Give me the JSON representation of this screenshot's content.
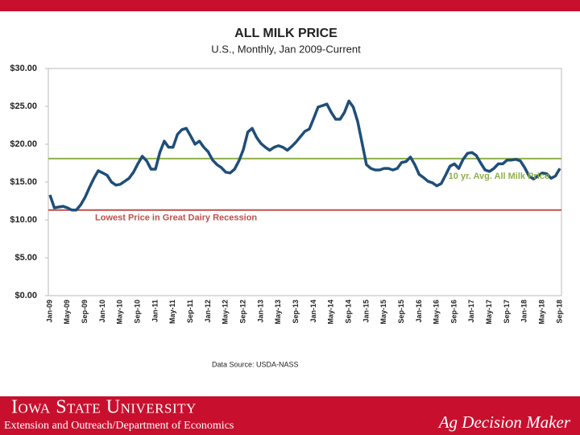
{
  "chart_data": {
    "type": "line",
    "title": "ALL MILK PRICE",
    "subtitle": "U.S., Monthly,  Jan 2009-Current",
    "categories": [
      "Jan-09",
      null,
      null,
      null,
      "May-09",
      null,
      null,
      null,
      "Sep-09",
      null,
      null,
      null,
      "Jan-10",
      null,
      null,
      null,
      "May-10",
      null,
      null,
      null,
      "Sep-10",
      null,
      null,
      null,
      "Jan-11",
      null,
      null,
      null,
      "May-11",
      null,
      null,
      null,
      "Sep-11",
      null,
      null,
      null,
      "Jan-12",
      null,
      null,
      null,
      "May-12",
      null,
      null,
      null,
      "Sep-12",
      null,
      null,
      null,
      "Jan-13",
      null,
      null,
      null,
      "May-13",
      null,
      null,
      null,
      "Sep-13",
      null,
      null,
      null,
      "Jan-14",
      null,
      null,
      null,
      "May-14",
      null,
      null,
      null,
      "Sep-14",
      null,
      null,
      null,
      "Jan-15",
      null,
      null,
      null,
      "May-15",
      null,
      null,
      null,
      "Sep-15",
      null,
      null,
      null,
      "Jan-16",
      null,
      null,
      null,
      "May-16",
      null,
      null,
      null,
      "Sep-16",
      null,
      null,
      null,
      "Jan-17",
      null,
      null,
      null,
      "May-17",
      null,
      null,
      null,
      "Sep-17",
      null,
      null,
      null,
      "Jan-18",
      null,
      null,
      null,
      "May-18",
      null,
      null,
      null,
      "Sep-18"
    ],
    "values": [
      13.3,
      11.6,
      11.7,
      11.8,
      11.6,
      11.3,
      11.3,
      12.0,
      13.0,
      14.3,
      15.5,
      16.5,
      16.2,
      15.9,
      15.0,
      14.6,
      14.7,
      15.1,
      15.5,
      16.3,
      17.4,
      18.4,
      17.8,
      16.7,
      16.7,
      18.9,
      20.4,
      19.6,
      19.6,
      21.3,
      21.9,
      22.1,
      21.1,
      20.0,
      20.4,
      19.6,
      19.0,
      17.9,
      17.3,
      16.9,
      16.3,
      16.2,
      16.7,
      17.8,
      19.3,
      21.6,
      22.1,
      20.9,
      20.1,
      19.6,
      19.2,
      19.6,
      19.8,
      19.6,
      19.2,
      19.7,
      20.3,
      21.0,
      21.7,
      22.0,
      23.4,
      24.9,
      25.1,
      25.3,
      24.2,
      23.3,
      23.3,
      24.2,
      25.7,
      24.9,
      23.0,
      20.2,
      17.3,
      16.8,
      16.6,
      16.6,
      16.8,
      16.8,
      16.6,
      16.8,
      17.6,
      17.7,
      18.3,
      17.3,
      16.0,
      15.6,
      15.1,
      14.9,
      14.5,
      14.8,
      15.9,
      17.1,
      17.4,
      16.8,
      18.0,
      18.8,
      18.9,
      18.5,
      17.5,
      16.6,
      16.4,
      16.8,
      17.4,
      17.4,
      17.9,
      17.9,
      18.0,
      17.8,
      16.9,
      15.8,
      15.4,
      15.8,
      16.2,
      16.1,
      15.5,
      15.8,
      16.8
    ],
    "color": "#1f4e79",
    "ylim": [
      0,
      30
    ],
    "yticks": [
      {
        "value": 0,
        "label": "$0.00"
      },
      {
        "value": 5,
        "label": "$5.00"
      },
      {
        "value": 10,
        "label": "$10.00"
      },
      {
        "value": 15,
        "label": "$15.00"
      },
      {
        "value": 20,
        "label": "$20.00"
      },
      {
        "value": 25,
        "label": "$25.00"
      },
      {
        "value": 30,
        "label": "$30.00"
      }
    ],
    "reference_lines": [
      {
        "value": 18.1,
        "label": "10 yr. Avg. All Milk Price",
        "color": "#8fb04a"
      },
      {
        "value": 11.3,
        "label": "Lowest Price in Great Dairy Recession",
        "color": "#c0504d"
      }
    ],
    "source": "Data Source:  USDA-NASS"
  },
  "footer": {
    "university": "Iowa State University",
    "department": "Extension and Outreach/Department of Economics",
    "brand": "Ag Decision Maker"
  }
}
